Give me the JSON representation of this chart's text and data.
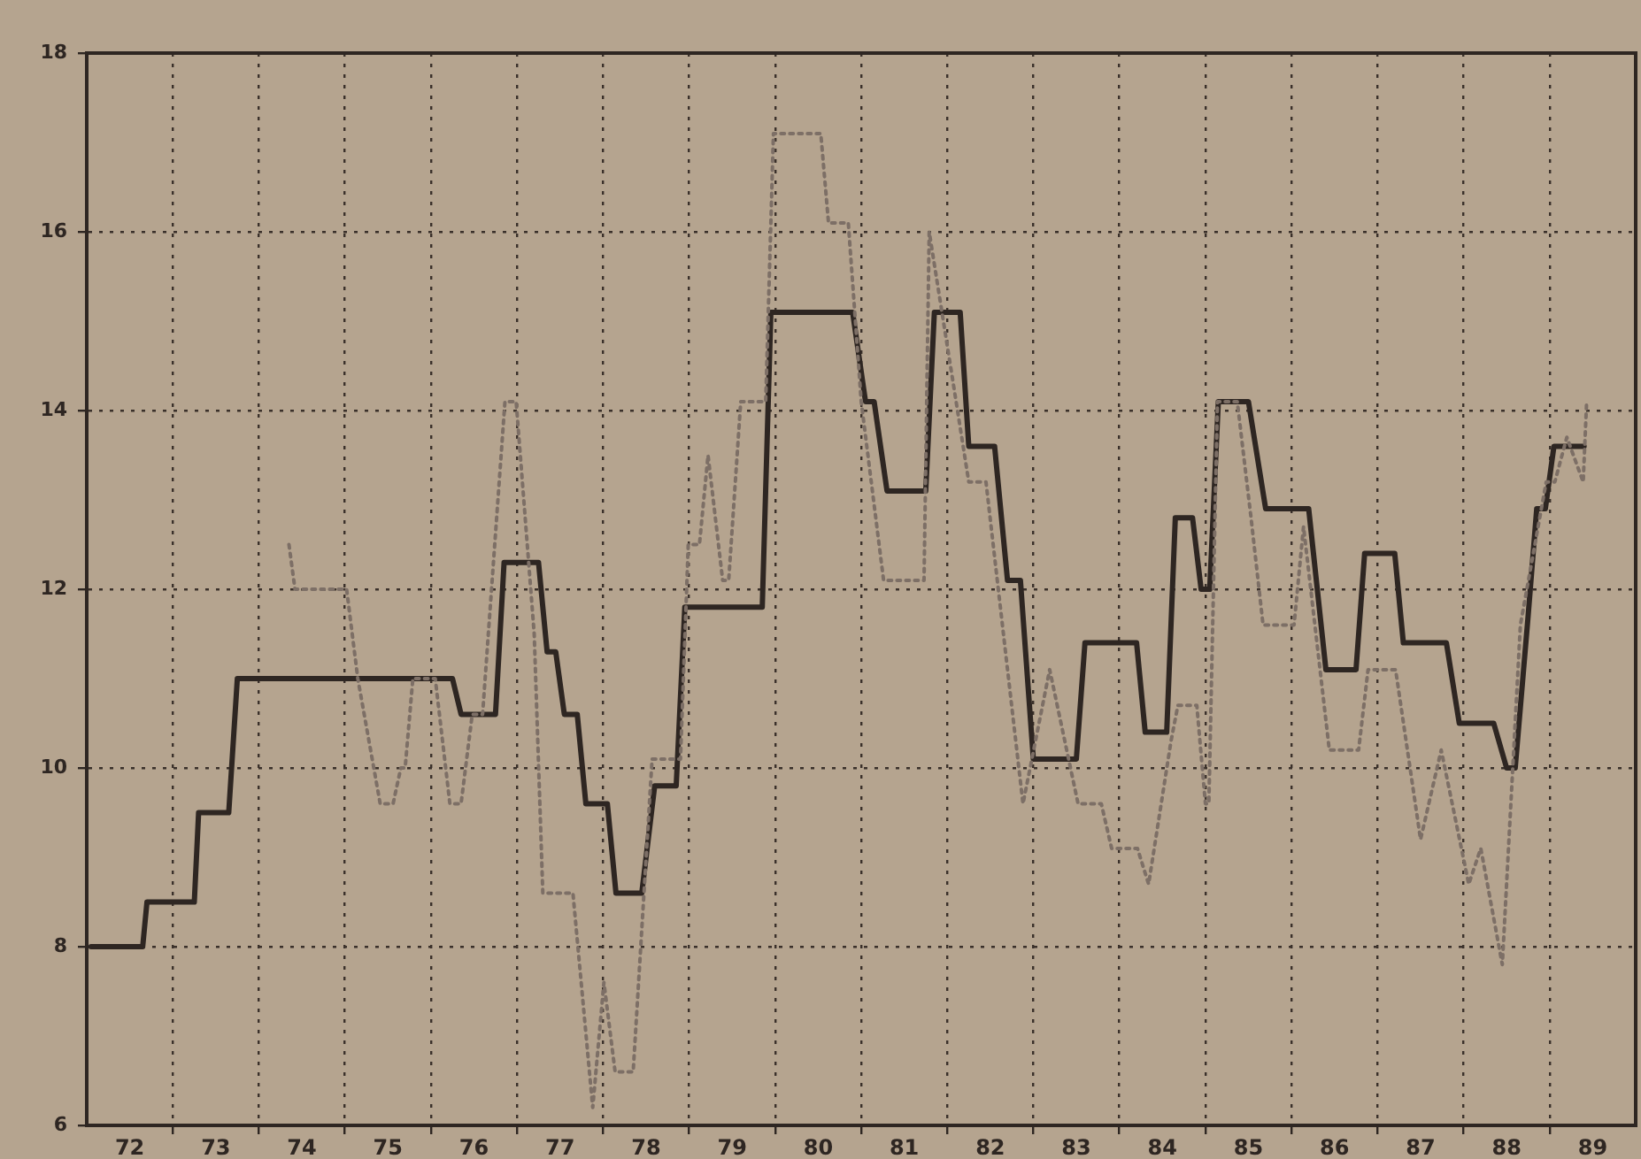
{
  "chart_data": {
    "type": "line",
    "xlim": [
      72,
      90
    ],
    "ylim": [
      6,
      18
    ],
    "xticks": [
      {
        "value": 72.5,
        "label": "72"
      },
      {
        "value": 73,
        "label": null
      },
      {
        "value": 73.5,
        "label": "73"
      },
      {
        "value": 74,
        "label": null
      },
      {
        "value": 74.5,
        "label": "74"
      },
      {
        "value": 75,
        "label": null
      },
      {
        "value": 75.5,
        "label": "75"
      },
      {
        "value": 76,
        "label": null
      },
      {
        "value": 76.5,
        "label": "76"
      },
      {
        "value": 77,
        "label": null
      },
      {
        "value": 77.5,
        "label": "77"
      },
      {
        "value": 78,
        "label": null
      },
      {
        "value": 78.5,
        "label": "78"
      },
      {
        "value": 79,
        "label": null
      },
      {
        "value": 79.5,
        "label": "79"
      },
      {
        "value": 80,
        "label": null
      },
      {
        "value": 80.5,
        "label": "80"
      },
      {
        "value": 81,
        "label": null
      },
      {
        "value": 81.5,
        "label": "81"
      },
      {
        "value": 82,
        "label": null
      },
      {
        "value": 82.5,
        "label": "82"
      },
      {
        "value": 83,
        "label": null
      },
      {
        "value": 83.5,
        "label": "83"
      },
      {
        "value": 84,
        "label": null
      },
      {
        "value": 84.5,
        "label": "84"
      },
      {
        "value": 85,
        "label": null
      },
      {
        "value": 85.5,
        "label": "85"
      },
      {
        "value": 86,
        "label": null
      },
      {
        "value": 86.5,
        "label": "86"
      },
      {
        "value": 87,
        "label": null
      },
      {
        "value": 87.5,
        "label": "87"
      },
      {
        "value": 88,
        "label": null
      },
      {
        "value": 88.5,
        "label": "88"
      },
      {
        "value": 89,
        "label": null
      },
      {
        "value": 89.5,
        "label": "89"
      }
    ],
    "yticks": [
      6,
      8,
      10,
      12,
      14,
      16,
      18
    ],
    "grid": true,
    "marker": "none",
    "series": [
      {
        "color": "#7d6f66",
        "line_style": "dotted",
        "x": [
          74.35,
          74.42,
          75.02,
          75.15,
          75.41,
          75.56,
          75.65,
          75.7,
          75.79,
          76.05,
          76.22,
          76.35,
          76.48,
          76.6,
          76.86,
          76.99,
          77.2,
          77.3,
          77.45,
          77.65,
          77.88,
          78.01,
          78.14,
          78.35,
          78.57,
          78.9,
          78.99,
          79.12,
          79.22,
          79.39,
          79.46,
          79.6,
          79.89,
          79.98,
          80.53,
          80.62,
          80.85,
          81.0,
          81.26,
          81.73,
          81.79,
          82.07,
          82.25,
          82.45,
          82.76,
          82.88,
          83.19,
          83.52,
          83.79,
          83.91,
          84.21,
          84.34,
          84.6,
          84.68,
          84.9,
          85.0,
          85.04,
          85.14,
          85.37,
          85.53,
          85.67,
          86.03,
          86.14,
          86.44,
          86.78,
          86.89,
          87.21,
          87.5,
          87.74,
          88.06,
          88.2,
          88.45,
          88.66,
          88.96,
          89.06,
          89.2,
          89.39,
          89.43
        ],
        "values": [
          12.5,
          12.0,
          12.0,
          11.0,
          9.6,
          9.6,
          10.0,
          10.0,
          11.0,
          11.0,
          9.6,
          9.6,
          10.6,
          10.6,
          14.1,
          14.1,
          11.5,
          8.6,
          8.6,
          8.6,
          6.2,
          7.6,
          6.6,
          6.6,
          10.1,
          10.1,
          12.5,
          12.5,
          13.5,
          12.1,
          12.1,
          14.1,
          14.1,
          17.1,
          17.1,
          16.1,
          16.1,
          14.1,
          12.1,
          12.1,
          16.0,
          14.3,
          13.2,
          13.2,
          10.6,
          9.6,
          11.1,
          9.6,
          9.6,
          9.1,
          9.1,
          8.7,
          10.3,
          10.7,
          10.7,
          9.6,
          9.6,
          14.1,
          14.1,
          12.8,
          11.6,
          11.6,
          12.7,
          10.2,
          10.2,
          11.1,
          11.1,
          9.2,
          10.2,
          8.7,
          9.1,
          7.8,
          11.6,
          13.2,
          13.2,
          13.7,
          13.2,
          14.1
        ]
      },
      {
        "color": "#2e2622",
        "line_style": "solid",
        "x": [
          72.05,
          72.65,
          72.7,
          73.25,
          73.3,
          73.65,
          73.75,
          76.25,
          76.35,
          76.75,
          76.85,
          77.25,
          77.35,
          77.45,
          77.55,
          77.7,
          77.8,
          78.05,
          78.15,
          78.45,
          78.6,
          78.85,
          78.95,
          79.85,
          79.95,
          80.9,
          81.05,
          81.15,
          81.3,
          81.75,
          81.85,
          82.15,
          82.25,
          82.55,
          82.7,
          82.85,
          83.0,
          83.5,
          83.6,
          84.2,
          84.3,
          84.55,
          84.65,
          84.85,
          84.95,
          85.05,
          85.15,
          85.5,
          85.7,
          86.2,
          86.4,
          86.75,
          86.85,
          87.2,
          87.3,
          87.8,
          87.95,
          88.35,
          88.5,
          88.6,
          88.75,
          88.85,
          88.95,
          89.05,
          89.4
        ],
        "values": [
          8.0,
          8.0,
          8.5,
          8.5,
          9.5,
          9.5,
          11.0,
          11.0,
          10.6,
          10.6,
          12.3,
          12.3,
          11.3,
          11.3,
          10.6,
          10.6,
          9.6,
          9.6,
          8.6,
          8.6,
          9.8,
          9.8,
          11.8,
          11.8,
          15.1,
          15.1,
          14.1,
          14.1,
          13.1,
          13.1,
          15.1,
          15.1,
          13.6,
          13.6,
          12.1,
          12.1,
          10.1,
          10.1,
          11.4,
          11.4,
          10.4,
          10.4,
          12.8,
          12.8,
          12.0,
          12.0,
          14.1,
          14.1,
          12.9,
          12.9,
          11.1,
          11.1,
          12.4,
          12.4,
          11.4,
          11.4,
          10.5,
          10.5,
          10.0,
          10.0,
          11.7,
          12.9,
          12.9,
          13.6,
          13.6
        ]
      }
    ]
  }
}
